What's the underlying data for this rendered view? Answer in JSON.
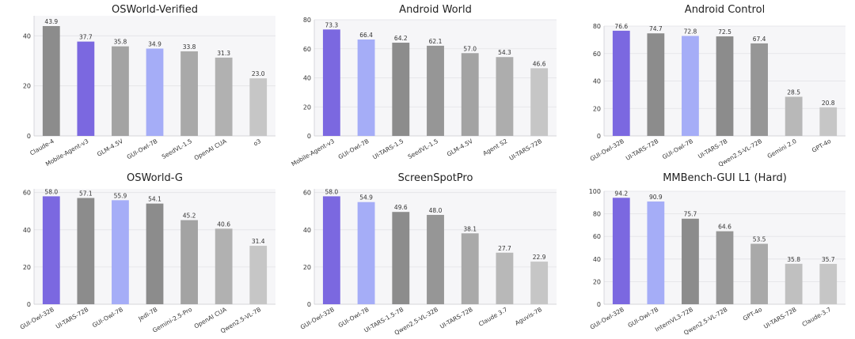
{
  "chart_data": [
    {
      "type": "bar",
      "title": "OSWorld-Verified",
      "categories": [
        "Claude-4",
        "Mobile-Agent-v3",
        "GLM-4.5V",
        "GUI-Owl-7B",
        "SeedVL-1.5",
        "OpenAI CUA",
        "o3"
      ],
      "values": [
        43.9,
        37.7,
        35.8,
        34.9,
        33.8,
        31.3,
        23.0
      ],
      "value_labels": [
        "43.9",
        "37.7",
        "35.8",
        "34.9",
        "33.8",
        "31.3",
        "23.0"
      ],
      "colors": [
        "#8c8c8c",
        "#7b68e0",
        "#a3a3a3",
        "#a5adf7",
        "#a9a9a9",
        "#b1b1b1",
        "#c6c6c6"
      ],
      "yticks": [
        0,
        20,
        40
      ],
      "ylim": [
        0,
        48
      ],
      "grid": true
    },
    {
      "type": "bar",
      "title": "Android World",
      "categories": [
        "Mobile-Agent-v3",
        "GUI-Owl-7B",
        "UI-TARS-1.5",
        "SeedVL-1.5",
        "GLM-4.5V",
        "Agent S2",
        "UI-TARS-72B"
      ],
      "values": [
        73.3,
        66.4,
        64.2,
        62.1,
        57.0,
        54.3,
        46.6
      ],
      "value_labels": [
        "73.3",
        "66.4",
        "64.2",
        "62.1",
        "57.0",
        "54.3",
        "46.6"
      ],
      "colors": [
        "#7b68e0",
        "#a5adf7",
        "#8c8c8c",
        "#969696",
        "#a3a3a3",
        "#adadad",
        "#c6c6c6"
      ],
      "yticks": [
        0,
        20,
        40,
        60,
        80
      ],
      "ylim": [
        0,
        80
      ],
      "grid": true
    },
    {
      "type": "bar",
      "title": "Android Control",
      "categories": [
        "GUI-Owl-32B",
        "UI-TARS-72B",
        "GUI-Owl-7B",
        "UI-TARS-7B",
        "Qwen2.5-VL-72B",
        "Gemini 2.0",
        "GPT-4o"
      ],
      "values": [
        76.6,
        74.7,
        72.8,
        72.5,
        67.4,
        28.5,
        20.8
      ],
      "value_labels": [
        "76.6",
        "74.7",
        "72.8",
        "72.5",
        "67.4",
        "28.5",
        "20.8"
      ],
      "colors": [
        "#7b68e0",
        "#8c8c8c",
        "#a5adf7",
        "#8c8c8c",
        "#969696",
        "#b8b8b8",
        "#c6c6c6"
      ],
      "yticks": [
        0,
        20,
        40,
        60,
        80
      ],
      "ylim": [
        0,
        80
      ],
      "grid": true
    },
    {
      "type": "bar",
      "title": "OSWorld-G",
      "categories": [
        "GUI-Owl-32B",
        "UI-TARS-72B",
        "GUI-Owl-7B",
        "Jedi-7B",
        "Gemini-2.5-Pro",
        "OpenAI CUA",
        "Qwen2.5-VL-7B"
      ],
      "values": [
        58.0,
        57.1,
        55.9,
        54.1,
        45.2,
        40.6,
        31.4
      ],
      "value_labels": [
        "58.0",
        "57.1",
        "55.9",
        "54.1",
        "45.2",
        "40.6",
        "31.4"
      ],
      "colors": [
        "#7b68e0",
        "#8c8c8c",
        "#a5adf7",
        "#8c8c8c",
        "#a3a3a3",
        "#b1b1b1",
        "#c6c6c6"
      ],
      "yticks": [
        0,
        20,
        40,
        60
      ],
      "ylim": [
        0,
        62
      ],
      "grid": true
    },
    {
      "type": "bar",
      "title": "ScreenSpotPro",
      "categories": [
        "GUI-Owl-32B",
        "GUI-Owl-7B",
        "UI-TARS-1.5-7B",
        "Qwen2.5-VL-32B",
        "UI-TARS-72B",
        "Claude 3.7",
        "Aguvis-7B"
      ],
      "values": [
        58.0,
        54.9,
        49.6,
        48.0,
        38.1,
        27.7,
        22.9
      ],
      "value_labels": [
        "58.0",
        "54.9",
        "49.6",
        "48.0",
        "38.1",
        "27.7",
        "22.9"
      ],
      "colors": [
        "#7b68e0",
        "#a5adf7",
        "#8c8c8c",
        "#969696",
        "#a9a9a9",
        "#b8b8b8",
        "#c6c6c6"
      ],
      "yticks": [
        0,
        20,
        40,
        60
      ],
      "ylim": [
        0,
        62
      ],
      "grid": true
    },
    {
      "type": "bar",
      "title": "MMBench-GUI L1 (Hard)",
      "categories": [
        "GUI-Owl-32B",
        "GUI-Owl-7B",
        "InternVL3-72B",
        "Qwen2.5-VL-72B",
        "GPT-4o",
        "UI-TARS-72B",
        "Claude-3.7"
      ],
      "values": [
        94.2,
        90.9,
        75.7,
        64.6,
        53.5,
        35.8,
        35.7
      ],
      "value_labels": [
        "94.2",
        "90.9",
        "75.7",
        "64.6",
        "53.5",
        "35.8",
        "35.7"
      ],
      "colors": [
        "#7b68e0",
        "#a5adf7",
        "#8c8c8c",
        "#969696",
        "#a9a9a9",
        "#c0c0c0",
        "#c6c6c6"
      ],
      "yticks": [
        0,
        20,
        40,
        60,
        80,
        100
      ],
      "ylim": [
        0,
        100
      ],
      "grid": true
    }
  ]
}
